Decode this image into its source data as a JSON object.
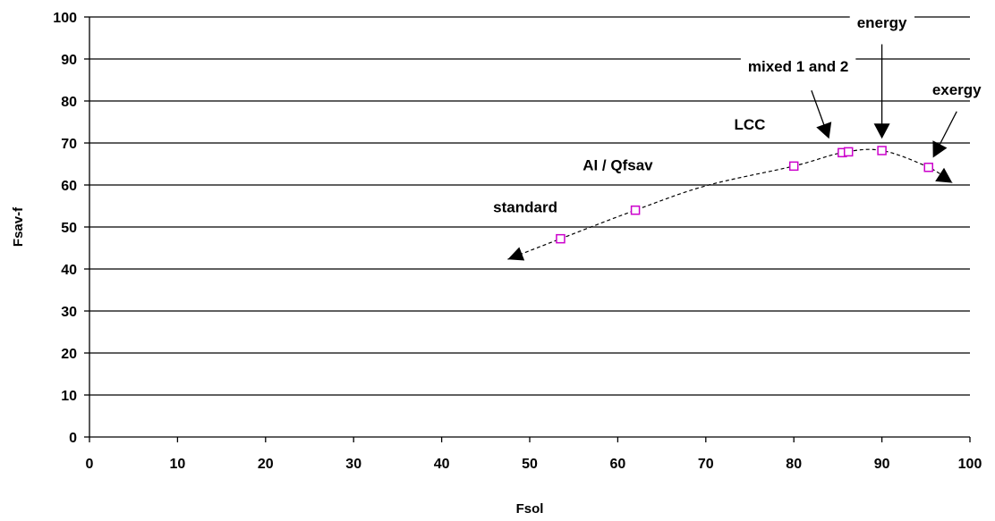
{
  "chart_data": {
    "type": "scatter",
    "title": "",
    "xlabel": "Fsol",
    "ylabel": "Fsav-f",
    "xlim": [
      0,
      100
    ],
    "ylim": [
      0,
      100
    ],
    "x_ticks": [
      0,
      10,
      20,
      30,
      40,
      50,
      60,
      70,
      80,
      90,
      100
    ],
    "y_ticks": [
      0,
      10,
      20,
      30,
      40,
      50,
      60,
      70,
      80,
      90,
      100
    ],
    "grid": "horizontal",
    "marker_color": "#cc00cc",
    "points": [
      {
        "x": 53.5,
        "y": 47.2
      },
      {
        "x": 62.0,
        "y": 54.0
      },
      {
        "x": 80.0,
        "y": 64.5
      },
      {
        "x": 85.5,
        "y": 67.7
      },
      {
        "x": 86.2,
        "y": 67.9
      },
      {
        "x": 90.0,
        "y": 68.2
      },
      {
        "x": 95.3,
        "y": 64.2
      }
    ],
    "trend_curve": [
      {
        "x": 47.5,
        "y": 42.3
      },
      {
        "x": 53.5,
        "y": 47.2
      },
      {
        "x": 62.0,
        "y": 54.0
      },
      {
        "x": 70.0,
        "y": 59.8
      },
      {
        "x": 80.0,
        "y": 64.5
      },
      {
        "x": 85.5,
        "y": 67.7
      },
      {
        "x": 90.0,
        "y": 68.2
      },
      {
        "x": 95.3,
        "y": 64.2
      },
      {
        "x": 98.0,
        "y": 60.5
      }
    ],
    "annotations": [
      {
        "text": "standard",
        "text_x": 49.5,
        "text_y": 53.5
      },
      {
        "text": "AI / Qfsav",
        "text_x": 60.0,
        "text_y": 63.5
      },
      {
        "text": "LCC",
        "text_x": 75.0,
        "text_y": 73.2
      },
      {
        "text": "mixed 1 and 2",
        "text_x": 80.5,
        "text_y": 87.0
      },
      {
        "text": "energy",
        "text_x": 90.0,
        "text_y": 97.5
      },
      {
        "text": "exergy",
        "text_x": 98.5,
        "text_y": 81.5
      }
    ],
    "pointer_arrows": [
      {
        "from": [
          82.0,
          82.5
        ],
        "to": [
          84.0,
          71.0
        ]
      },
      {
        "from": [
          90.0,
          93.5
        ],
        "to": [
          90.0,
          71.0
        ]
      },
      {
        "from": [
          98.5,
          77.5
        ],
        "to": [
          95.8,
          66.5
        ]
      }
    ]
  }
}
